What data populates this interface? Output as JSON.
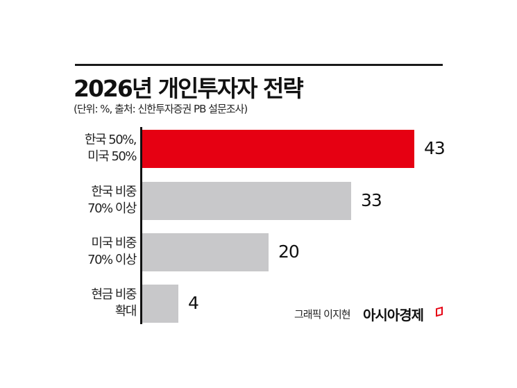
{
  "header": {
    "title": "2026년 개인투자자 전략",
    "subtitle": "(단위: %, 출처: 신한투자증권 PB 설문조사)"
  },
  "footer": {
    "credit": "그래픽 이지현",
    "brand": "아시아경제"
  },
  "colors": {
    "highlight": "#e60012",
    "default_bar": "#c8c8ca",
    "axis": "#111111"
  },
  "bars": [
    {
      "label_line1": "한국 50%,",
      "label_line2": "미국 50%",
      "value": "43",
      "color": "#e60012"
    },
    {
      "label_line1": "한국 비중",
      "label_line2": "70% 이상",
      "value": "33",
      "color": "#c8c8ca"
    },
    {
      "label_line1": "미국 비중",
      "label_line2": "70% 이상",
      "value": "20",
      "color": "#c8c8ca"
    },
    {
      "label_line1": "현금 비중",
      "label_line2": "확대",
      "value": "4",
      "color": "#c8c8ca"
    }
  ],
  "chart_data": {
    "type": "bar",
    "orientation": "horizontal",
    "title": "2026년 개인투자자 전략",
    "subtitle": "(단위: %, 출처: 신한투자증권 PB 설문조사)",
    "categories": [
      "한국 50%, 미국 50%",
      "한국 비중 70% 이상",
      "미국 비중 70% 이상",
      "현금 비중 확대"
    ],
    "values": [
      43,
      33,
      20,
      4
    ],
    "unit": "%",
    "xlabel": "",
    "ylabel": "",
    "grid": false,
    "legend": null,
    "highlight_index": 0,
    "annotations": [
      "그래픽 이지현",
      "아시아경제"
    ]
  }
}
